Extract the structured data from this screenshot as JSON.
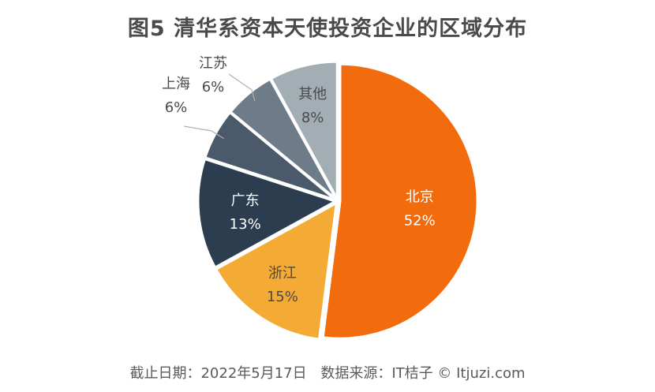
{
  "chart_data": {
    "type": "pie",
    "title": "图5  清华系资本天使投资企业的区域分布",
    "slices": [
      {
        "label": "北京",
        "value": 52,
        "value_label": "52%",
        "color": "#f26c0d"
      },
      {
        "label": "浙江",
        "value": 15,
        "value_label": "15%",
        "color": "#f4ab35"
      },
      {
        "label": "广东",
        "value": 13,
        "value_label": "13%",
        "color": "#2b3d4f"
      },
      {
        "label": "上海",
        "value": 6,
        "value_label": "6%",
        "color": "#4a5a6a"
      },
      {
        "label": "江苏",
        "value": 6,
        "value_label": "6%",
        "color": "#6d7c88"
      },
      {
        "label": "其他",
        "value": 8,
        "value_label": "8%",
        "color": "#a3adb4"
      }
    ]
  },
  "footer": {
    "date_text": "截止日期：2022年5月17日",
    "source_text": "数据来源：IT桔子 © Itjuzi.com"
  }
}
